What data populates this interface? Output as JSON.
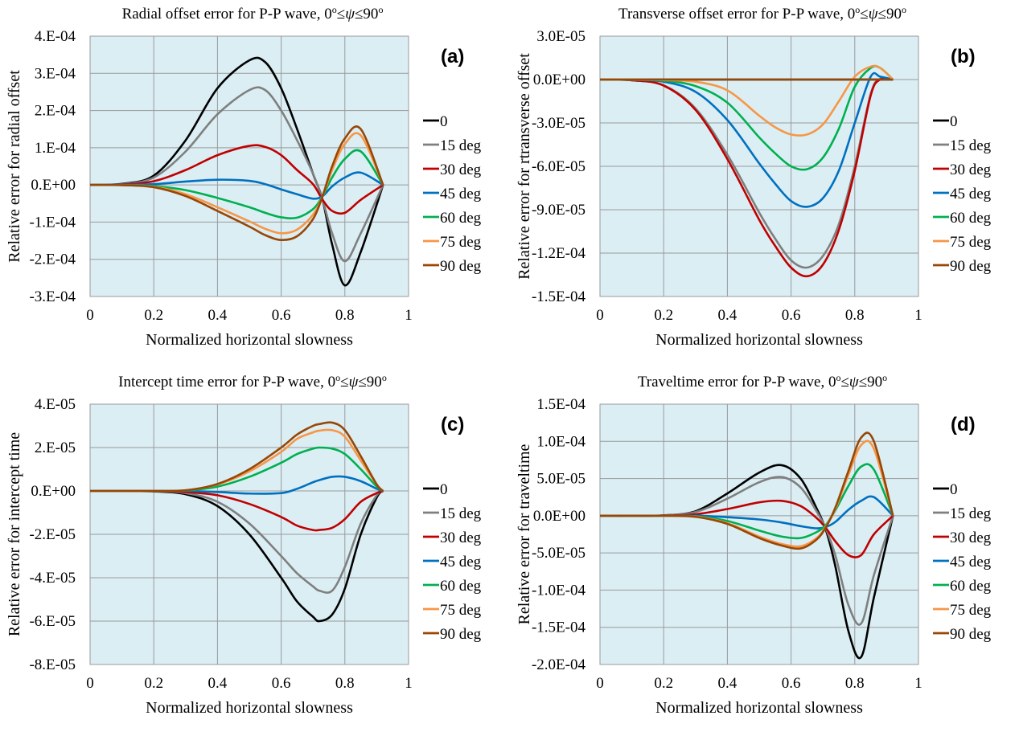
{
  "chart_data": [
    {
      "type": "line",
      "panel_label": "(a)",
      "title_main": "Radial offset error for P-P wave, 0",
      "title_mid": "≤",
      "title_psi": "ψ",
      "title_end": "≤90",
      "title_sup": "o",
      "xlabel": "Normalized horizontal slowness",
      "ylabel": "Relative error for radial offset",
      "xlim": [
        0,
        1
      ],
      "ylim": [
        -0.0003,
        0.0004
      ],
      "xticks": [
        "0",
        "0.2",
        "0.4",
        "0.6",
        "0.8",
        "1"
      ],
      "yticks": [
        "4.E-04",
        "3.E-04",
        "2.E-04",
        "1.E-04",
        "0.E+00",
        "-1.E-04",
        "-2.E-04",
        "-3.E-04"
      ],
      "grid": true,
      "legend_position": "right",
      "x": [
        0,
        0.1,
        0.2,
        0.3,
        0.4,
        0.5,
        0.55,
        0.6,
        0.65,
        0.7,
        0.73,
        0.76,
        0.8,
        0.85,
        0.92
      ],
      "series": [
        {
          "name": "0",
          "color": "#000000",
          "values": [
            0,
            3e-06,
            2.5e-05,
            0.00012,
            0.00026,
            0.000335,
            0.00033,
            0.00026,
            0.00015,
            3e-05,
            -4e-05,
            -0.00016,
            -0.00027,
            -0.00018,
            0
          ]
        },
        {
          "name": "15 deg",
          "color": "#7f7f7f",
          "values": [
            0,
            2e-06,
            2e-05,
            9e-05,
            0.00019,
            0.000255,
            0.000255,
            0.0002,
            0.00012,
            3e-05,
            -4e-05,
            -0.00013,
            -0.000205,
            -0.00013,
            0
          ]
        },
        {
          "name": "30 deg",
          "color": "#c00000",
          "values": [
            0,
            1e-06,
            1e-05,
            4e-05,
            8e-05,
            0.000105,
            0.000102,
            8e-05,
            4e-05,
            2e-06,
            -4e-05,
            -7e-05,
            -7.5e-05,
            -4e-05,
            0
          ]
        },
        {
          "name": "45 deg",
          "color": "#0070c0",
          "values": [
            0,
            3e-07,
            2e-06,
            9e-06,
            1.4e-05,
            1.1e-05,
            2e-06,
            -1.2e-05,
            -2.5e-05,
            -3.7e-05,
            -3e-05,
            -4e-06,
            2e-05,
            3.3e-05,
            0
          ]
        },
        {
          "name": "60 deg",
          "color": "#00b050",
          "values": [
            0,
            -3e-07,
            -3e-06,
            -1.4e-05,
            -3.5e-05,
            -6e-05,
            -7.5e-05,
            -8.7e-05,
            -8.8e-05,
            -6.5e-05,
            -3e-05,
            2e-05,
            7e-05,
            9e-05,
            0
          ]
        },
        {
          "name": "75 deg",
          "color": "#f79646",
          "values": [
            0,
            -5e-07,
            -5e-06,
            -2.5e-05,
            -6e-05,
            -9.8e-05,
            -0.000118,
            -0.00013,
            -0.00012,
            -8e-05,
            -3e-05,
            4e-05,
            0.00011,
            0.000133,
            0
          ]
        },
        {
          "name": "90 deg",
          "color": "#974706",
          "values": [
            0,
            -6e-07,
            -6e-06,
            -3e-05,
            -7e-05,
            -0.000112,
            -0.000135,
            -0.000148,
            -0.000138,
            -9.2e-05,
            -3e-05,
            5e-05,
            0.000125,
            0.00015,
            0
          ]
        }
      ]
    },
    {
      "type": "line",
      "panel_label": "(b)",
      "title_main": "Transverse offset error for P-P wave, 0",
      "title_mid": "≤",
      "title_psi": "ψ",
      "title_end": "≤90",
      "title_sup": "o",
      "xlabel": "Normalized horizontal slowness",
      "ylabel": "Relative error for rtransverse offset",
      "xlim": [
        0,
        1
      ],
      "ylim": [
        -0.00015,
        3e-05
      ],
      "xticks": [
        "0",
        "0.2",
        "0.4",
        "0.6",
        "0.8",
        "1"
      ],
      "yticks": [
        "3.0E-05",
        "0.0E+00",
        "-3.0E-05",
        "-6.0E-05",
        "-9.0E-05",
        "-1.2E-04",
        "-1.5E-04"
      ],
      "grid": true,
      "legend_position": "right",
      "x": [
        0,
        0.1,
        0.2,
        0.3,
        0.4,
        0.5,
        0.55,
        0.6,
        0.65,
        0.7,
        0.75,
        0.8,
        0.85,
        0.88,
        0.92
      ],
      "series": [
        {
          "name": "0",
          "color": "#000000",
          "values": [
            0,
            0,
            0,
            0,
            0,
            0,
            0,
            0,
            0,
            0,
            0,
            0,
            0,
            0,
            0
          ]
        },
        {
          "name": "15 deg",
          "color": "#7f7f7f",
          "values": [
            0,
            -5e-07,
            -4e-06,
            -2e-05,
            -5.2e-05,
            -9.2e-05,
            -0.00011,
            -0.000125,
            -0.00013,
            -0.000122,
            -0.0001,
            -6e-05,
            -1e-05,
            5e-07,
            0
          ]
        },
        {
          "name": "30 deg",
          "color": "#c00000",
          "values": [
            0,
            -5e-07,
            -4.2e-06,
            -2.1e-05,
            -5.5e-05,
            -9.7e-05,
            -0.000115,
            -0.00013,
            -0.000136,
            -0.000128,
            -0.000104,
            -6.3e-05,
            -1.1e-05,
            0,
            0
          ]
        },
        {
          "name": "45 deg",
          "color": "#0070c0",
          "values": [
            0,
            -2e-07,
            -1.5e-06,
            -8.5e-06,
            -2.8e-05,
            -5.8e-05,
            -7.2e-05,
            -8.4e-05,
            -8.8e-05,
            -8.2e-05,
            -6.3e-05,
            -3e-05,
            2e-06,
            2e-06,
            0
          ]
        },
        {
          "name": "60 deg",
          "color": "#00b050",
          "values": [
            0,
            -1e-07,
            -8e-07,
            -4.5e-06,
            -1.6e-05,
            -4e-05,
            -5.1e-05,
            -6e-05,
            -6.2e-05,
            -5.4e-05,
            -3.4e-05,
            -5e-06,
            8e-06,
            8e-06,
            0
          ]
        },
        {
          "name": "75 deg",
          "color": "#f79646",
          "values": [
            0,
            0,
            -3e-07,
            -1.5e-06,
            -7.5e-06,
            -2.5e-05,
            -3.3e-05,
            -3.8e-05,
            -3.8e-05,
            -3.1e-05,
            -1.5e-05,
            2e-06,
            9e-06,
            8e-06,
            0
          ]
        },
        {
          "name": "90 deg",
          "color": "#974706",
          "values": [
            0,
            0,
            0,
            0,
            0,
            0,
            0,
            0,
            0,
            0,
            0,
            0,
            0,
            0,
            0
          ]
        }
      ]
    },
    {
      "type": "line",
      "panel_label": "(c)",
      "title_main": "Intercept time error for P-P wave, 0",
      "title_mid": "≤",
      "title_psi": "ψ",
      "title_end": "≤90",
      "title_sup": "o",
      "xlabel": "Normalized horizontal slowness",
      "ylabel": "Relative error for intercept time",
      "xlim": [
        0,
        1
      ],
      "ylim": [
        -8e-05,
        4e-05
      ],
      "xticks": [
        "0",
        "0.2",
        "0.4",
        "0.6",
        "0.8",
        "1"
      ],
      "yticks": [
        "4.E-05",
        "2.E-05",
        "0.E+00",
        "-2.E-05",
        "-4.E-05",
        "-6.E-05",
        "-8.E-05"
      ],
      "grid": true,
      "legend_position": "right",
      "x": [
        0,
        0.1,
        0.2,
        0.3,
        0.4,
        0.5,
        0.6,
        0.65,
        0.7,
        0.72,
        0.76,
        0.8,
        0.85,
        0.9,
        0.92
      ],
      "series": [
        {
          "name": "0",
          "color": "#000000",
          "values": [
            0,
            0,
            -2e-07,
            -1.5e-06,
            -7e-06,
            -2e-05,
            -4e-05,
            -5.1e-05,
            -5.8e-05,
            -6e-05,
            -5.7e-05,
            -4.5e-05,
            -2e-05,
            -3e-06,
            0
          ]
        },
        {
          "name": "15 deg",
          "color": "#7f7f7f",
          "values": [
            0,
            0,
            -1e-07,
            -1e-06,
            -5e-06,
            -1.5e-05,
            -3e-05,
            -3.8e-05,
            -4.4e-05,
            -4.6e-05,
            -4.6e-05,
            -3.5e-05,
            -1.5e-05,
            -2e-06,
            0
          ]
        },
        {
          "name": "30 deg",
          "color": "#c00000",
          "values": [
            0,
            0,
            0,
            -5e-07,
            -2e-06,
            -6e-06,
            -1.2e-05,
            -1.6e-05,
            -1.8e-05,
            -1.8e-05,
            -1.7e-05,
            -1.3e-05,
            -5e-06,
            -1e-06,
            0
          ]
        },
        {
          "name": "45 deg",
          "color": "#0070c0",
          "values": [
            0,
            0,
            0,
            0,
            -5e-07,
            -1.2e-06,
            -1e-06,
            1e-06,
            4e-06,
            5e-06,
            6.5e-06,
            6.5e-06,
            4.5e-06,
            1e-06,
            0
          ]
        },
        {
          "name": "60 deg",
          "color": "#00b050",
          "values": [
            0,
            0,
            0,
            2e-07,
            2e-06,
            6.5e-06,
            1.3e-05,
            1.7e-05,
            1.95e-05,
            2e-05,
            1.95e-05,
            1.7e-05,
            1e-05,
            2e-06,
            0
          ]
        },
        {
          "name": "75 deg",
          "color": "#f79646",
          "values": [
            0,
            0,
            0,
            3e-07,
            3e-06,
            9e-06,
            1.8e-05,
            2.4e-05,
            2.7e-05,
            2.78e-05,
            2.8e-05,
            2.5e-05,
            1.4e-05,
            3e-06,
            0
          ]
        },
        {
          "name": "90 deg",
          "color": "#974706",
          "values": [
            0,
            0,
            0,
            3e-07,
            3.2e-06,
            1e-05,
            2e-05,
            2.6e-05,
            3e-05,
            3.08e-05,
            3.15e-05,
            2.8e-05,
            1.6e-05,
            3e-06,
            0
          ]
        }
      ]
    },
    {
      "type": "line",
      "panel_label": "(d)",
      "title_main": "Traveltime error for P-P wave, 0",
      "title_mid": "≤",
      "title_psi": "ψ",
      "title_end": "≤90",
      "title_sup": "o",
      "xlabel": "Normalized horizontal slowness",
      "ylabel": "Relative error for traveltime",
      "xlim": [
        0,
        1
      ],
      "ylim": [
        -0.0002,
        0.00015
      ],
      "xticks": [
        "0",
        "0.2",
        "0.4",
        "0.6",
        "0.8",
        "1"
      ],
      "yticks": [
        "1.5E-04",
        "1.0E-04",
        "5.0E-05",
        "0.0E+00",
        "-5.0E-05",
        "-1.0E-04",
        "-1.5E-04",
        "-2.0E-04"
      ],
      "grid": true,
      "legend_position": "right",
      "x": [
        0,
        0.1,
        0.2,
        0.3,
        0.4,
        0.5,
        0.57,
        0.63,
        0.68,
        0.71,
        0.74,
        0.78,
        0.82,
        0.86,
        0.92
      ],
      "series": [
        {
          "name": "0",
          "color": "#000000",
          "values": [
            0,
            0,
            5e-07,
            6e-06,
            3e-05,
            5.8e-05,
            6.8e-05,
            5e-05,
            1e-05,
            -2e-05,
            -7e-05,
            -0.000155,
            -0.00019,
            -0.00011,
            0
          ]
        },
        {
          "name": "15 deg",
          "color": "#7f7f7f",
          "values": [
            0,
            0,
            4e-07,
            5e-06,
            2.3e-05,
            4.5e-05,
            5.2e-05,
            3.8e-05,
            6e-06,
            -1.8e-05,
            -5.5e-05,
            -0.00012,
            -0.000145,
            -8e-05,
            0
          ]
        },
        {
          "name": "30 deg",
          "color": "#c00000",
          "values": [
            0,
            0,
            2e-07,
            2e-06,
            9e-06,
            1.8e-05,
            2e-05,
            1.3e-05,
            -3e-06,
            -1.7e-05,
            -3.5e-05,
            -5.3e-05,
            -5.3e-05,
            -2.5e-05,
            0
          ]
        },
        {
          "name": "45 deg",
          "color": "#0070c0",
          "values": [
            0,
            0,
            0,
            0,
            -2e-06,
            -5e-06,
            -9e-06,
            -1.4e-05,
            -1.7e-05,
            -1.5e-05,
            -8e-06,
            8e-06,
            2e-05,
            2.5e-05,
            0
          ]
        },
        {
          "name": "60 deg",
          "color": "#00b050",
          "values": [
            0,
            0,
            0,
            -8e-07,
            -7e-06,
            -2e-05,
            -2.8e-05,
            -3e-05,
            -2.2e-05,
            -1.2e-05,
            8e-06,
            4e-05,
            6.6e-05,
            6.2e-05,
            0
          ]
        },
        {
          "name": "75 deg",
          "color": "#f79646",
          "values": [
            0,
            0,
            0,
            -1.2e-06,
            -1e-05,
            -2.8e-05,
            -3.8e-05,
            -4.1e-05,
            -3e-05,
            -1.4e-05,
            1e-05,
            5.5e-05,
            9.5e-05,
            9e-05,
            0
          ]
        },
        {
          "name": "90 deg",
          "color": "#974706",
          "values": [
            0,
            0,
            0,
            -1.5e-06,
            -1.1e-05,
            -3e-05,
            -4e-05,
            -4.4e-05,
            -3.2e-05,
            -1.5e-05,
            1.2e-05,
            6e-05,
            0.000105,
            0.0001,
            0
          ]
        }
      ]
    }
  ]
}
